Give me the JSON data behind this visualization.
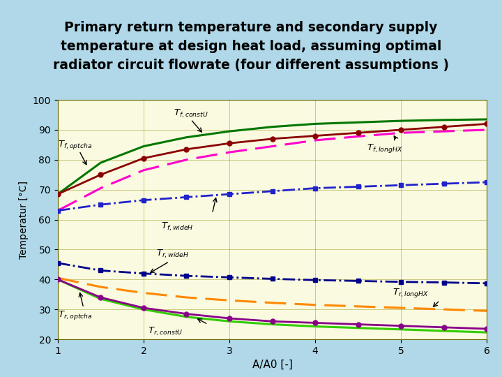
{
  "title_line1": "Primary return temperature and secondary supply",
  "title_line2": "temperature at design heat load, assuming optimal",
  "title_line3_main": "radiator circuit flowrate (",
  "title_line3_small": "four different assumptions ",
  "title_line3_end": ")",
  "xlabel": "A/A0 [-]",
  "ylabel": "Temperatur [°C]",
  "xlim": [
    1,
    6
  ],
  "ylim": [
    20,
    100
  ],
  "yticks": [
    20,
    30,
    40,
    50,
    60,
    70,
    80,
    90,
    100
  ],
  "xticks": [
    1,
    2,
    3,
    4,
    5,
    6
  ],
  "bg_color": "#FAFAE0",
  "outer_bg": "#B0D8E8",
  "x": [
    1.0,
    1.5,
    2.0,
    2.5,
    3.0,
    3.5,
    4.0,
    4.5,
    5.0,
    5.5,
    6.0
  ],
  "Tf_constU": [
    68.5,
    79.0,
    84.5,
    87.5,
    89.5,
    91.0,
    92.0,
    92.5,
    93.0,
    93.3,
    93.5
  ],
  "Tf_optcha": [
    68.5,
    75.0,
    80.5,
    83.5,
    85.5,
    87.0,
    88.0,
    89.0,
    90.0,
    91.0,
    92.0
  ],
  "Tf_longHX": [
    63.0,
    70.5,
    76.5,
    80.0,
    82.5,
    84.5,
    86.5,
    87.8,
    89.0,
    89.5,
    90.0
  ],
  "Tf_wideH": [
    63.0,
    65.0,
    66.5,
    67.5,
    68.5,
    69.5,
    70.5,
    71.0,
    71.5,
    72.0,
    72.5
  ],
  "Tr_wideH": [
    45.5,
    43.0,
    42.0,
    41.2,
    40.7,
    40.2,
    39.8,
    39.5,
    39.2,
    39.0,
    38.7
  ],
  "Tr_longHX": [
    40.5,
    37.5,
    35.5,
    34.0,
    33.0,
    32.2,
    31.5,
    31.0,
    30.5,
    30.0,
    29.5
  ],
  "Tr_optcha": [
    40.0,
    34.0,
    30.5,
    28.5,
    27.0,
    26.0,
    25.5,
    25.0,
    24.5,
    24.0,
    23.5
  ],
  "Tr_constU": [
    40.0,
    33.5,
    30.0,
    27.5,
    26.0,
    25.0,
    24.3,
    23.8,
    23.3,
    22.8,
    22.3
  ],
  "color_green": "#007700",
  "color_darkred": "#8B0000",
  "color_magenta": "#FF00CC",
  "color_blue": "#2222CC",
  "color_darkblue": "#00008B",
  "color_orange": "#FF8800",
  "color_purple": "#880088",
  "color_limegreen": "#33CC00"
}
